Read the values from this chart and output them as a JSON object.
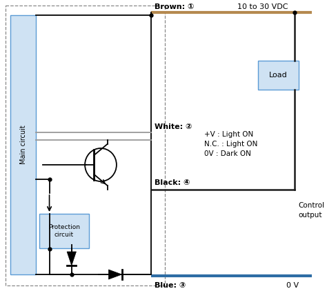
{
  "fig_width": 4.74,
  "fig_height": 4.22,
  "dpi": 100,
  "bg_color": "#ffffff",
  "brown_wire_color": "#b5894f",
  "blue_wire_color": "#2e6da4",
  "black_wire_color": "#1a1a1a",
  "gray_wire_color": "#999999",
  "main_circuit_fill": "#cfe2f3",
  "main_circuit_border": "#5b9bd5",
  "protection_circuit_fill": "#cfe2f3",
  "protection_circuit_border": "#5b9bd5",
  "load_fill": "#cfe2f3",
  "load_border": "#5b9bd5",
  "dash_border_color": "#888888",
  "labels": {
    "brown": "Brown: ①",
    "brown_voltage": "10 to 30 VDC",
    "white": "White: ②",
    "white_desc1": "+V : Light ON",
    "white_desc2": "N.C. : Light ON",
    "white_desc3": "0V : Dark ON",
    "black": "Black: ④",
    "blue": "Blue: ③",
    "blue_voltage": "0 V",
    "control_output1": "Control",
    "control_output2": "output",
    "main_circuit": "Main circuit",
    "protection_circuit": "Protection\ncircuit",
    "load": "Load"
  }
}
